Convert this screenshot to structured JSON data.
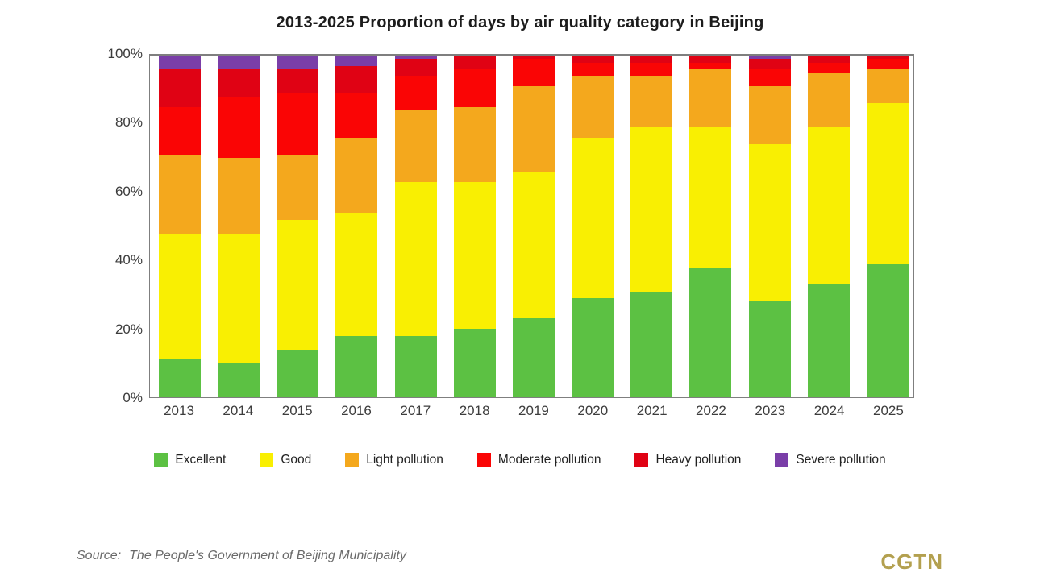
{
  "title": "2013-2025 Proportion of days by air quality category in Beijing",
  "source": {
    "label": "Source:",
    "text": "The People's Government of Beijing Municipality"
  },
  "branding": {
    "logo_text": "CGTN",
    "color": "#b3a04f"
  },
  "colors": {
    "excellent": "#5cc143",
    "good": "#f9ef02",
    "light_pollution": "#f4a81d",
    "moderate_pollution": "#fa0505",
    "heavy_pollution": "#e00214",
    "severe_pollution": "#7a3ea8",
    "axis_border": "#7f7f7f"
  },
  "chart_data": {
    "type": "bar",
    "stacked": true,
    "title": "2013-2025 Proportion of days by air quality category in Beijing",
    "xlabel": "",
    "ylabel": "",
    "ylim": [
      0,
      100
    ],
    "ytick_labels": [
      "0%",
      "20%",
      "40%",
      "60%",
      "80%",
      "100%"
    ],
    "grid": false,
    "legend_position": "bottom",
    "categories": [
      "2013",
      "2014",
      "2015",
      "2016",
      "2017",
      "2018",
      "2019",
      "2020",
      "2021",
      "2022",
      "2023",
      "2024",
      "2025"
    ],
    "series": [
      {
        "name": "Excellent",
        "color": "#5cc143",
        "values": [
          11,
          10,
          14,
          18,
          18,
          20,
          23,
          29,
          31,
          38,
          28,
          33,
          39
        ]
      },
      {
        "name": "Good",
        "color": "#f9ef02",
        "values": [
          37,
          38,
          38,
          36,
          45,
          43,
          43,
          47,
          48,
          41,
          46,
          46,
          47
        ]
      },
      {
        "name": "Light pollution",
        "color": "#f4a81d",
        "values": [
          23,
          22,
          19,
          22,
          21,
          22,
          25,
          18,
          15,
          17,
          17,
          16,
          10
        ]
      },
      {
        "name": "Moderate pollution",
        "color": "#fa0505",
        "values": [
          14,
          18,
          18,
          13,
          10,
          11,
          8,
          4,
          4,
          2,
          5,
          3,
          3
        ]
      },
      {
        "name": "Heavy pollution",
        "color": "#e00214",
        "values": [
          11,
          8,
          7,
          8,
          5,
          4,
          1,
          2,
          2,
          2,
          3,
          2,
          1
        ]
      },
      {
        "name": "Severe pollution",
        "color": "#7a3ea8",
        "values": [
          4,
          4,
          4,
          3,
          1,
          0,
          0,
          0,
          0,
          0,
          1,
          0,
          0
        ]
      }
    ]
  }
}
